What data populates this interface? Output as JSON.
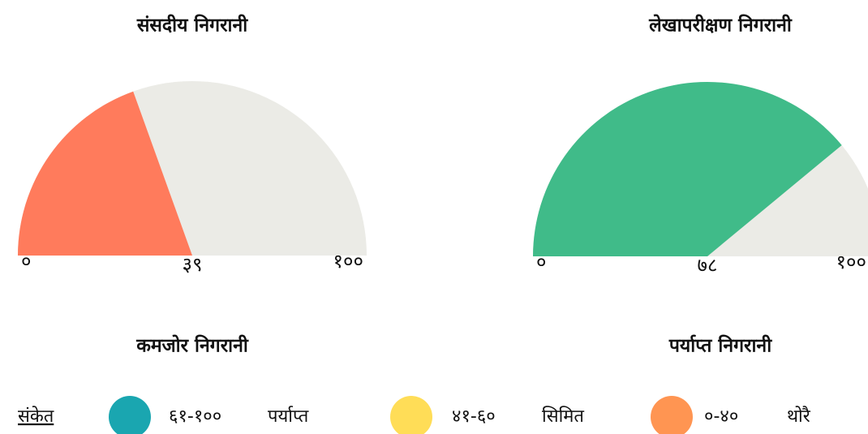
{
  "chart_data": [
    {
      "type": "gauge",
      "title": "संसदीय निगरानी",
      "value": 39,
      "value_label": "३९",
      "color": "#ff7b5c",
      "track_color": "#ebebe6",
      "ylim": [
        0,
        100
      ],
      "yticks": [
        {
          "value": 0,
          "label": "०"
        },
        {
          "value": 100,
          "label": "१००"
        }
      ],
      "status": "कमजोर निगरानी"
    },
    {
      "type": "gauge",
      "title": "लेखापरीक्षण निगरानी",
      "value": 78,
      "value_label": "७८",
      "color": "#40bb89",
      "track_color": "#ebebe6",
      "ylim": [
        0,
        100
      ],
      "yticks": [
        {
          "value": 0,
          "label": "०"
        },
        {
          "value": 100,
          "label": "१००"
        }
      ],
      "status": "पर्याप्त निगरानी"
    }
  ],
  "legend": {
    "title": "संकेत",
    "items": [
      {
        "color": "#1aa6b0",
        "range": "६१-१००",
        "name": "पर्याप्त"
      },
      {
        "color": "#ffdd57",
        "range": "४१-६०",
        "name": "सिमित"
      },
      {
        "color": "#ff9552",
        "range": "०-४०",
        "name": "थोरै"
      }
    ]
  }
}
